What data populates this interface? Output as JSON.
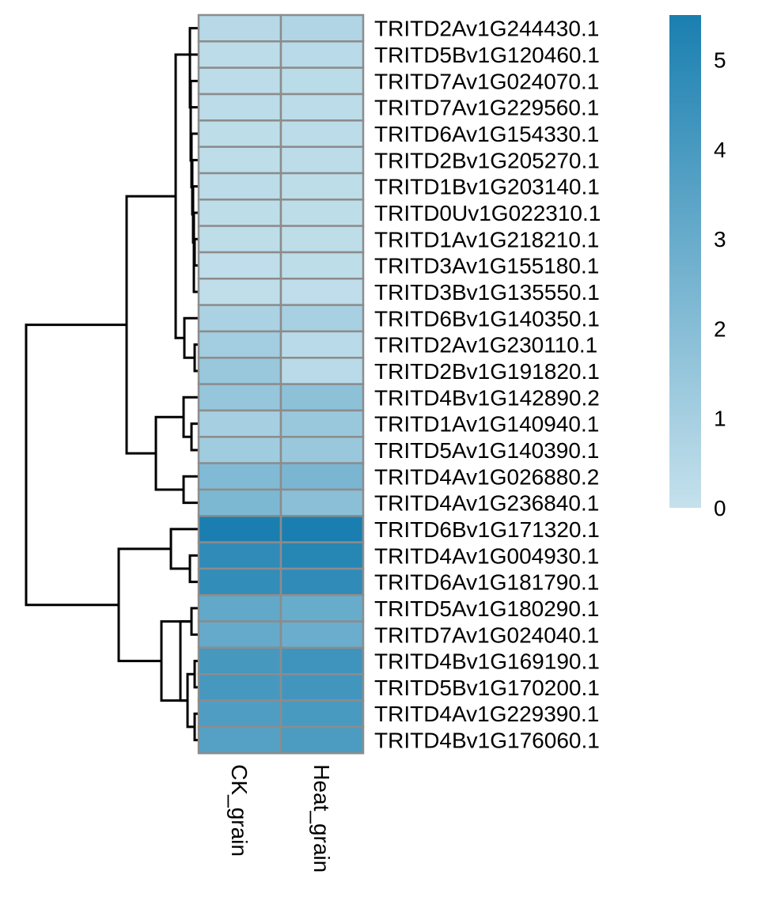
{
  "chart_data": {
    "type": "heatmap",
    "title": "",
    "columns": [
      "CK_grain",
      "Heat_grain"
    ],
    "rows": [
      {
        "gene": "TRITD2Av1G244430.1",
        "values": [
          0.45,
          0.65
        ]
      },
      {
        "gene": "TRITD5Bv1G120460.1",
        "values": [
          0.3,
          0.4
        ]
      },
      {
        "gene": "TRITD7Av1G024070.1",
        "values": [
          0.3,
          0.35
        ]
      },
      {
        "gene": "TRITD7Av1G229560.1",
        "values": [
          0.3,
          0.3
        ]
      },
      {
        "gene": "TRITD6Av1G154330.1",
        "values": [
          0.25,
          0.3
        ]
      },
      {
        "gene": "TRITD2Bv1G205270.1",
        "values": [
          0.25,
          0.3
        ]
      },
      {
        "gene": "TRITD1Bv1G203140.1",
        "values": [
          0.3,
          0.25
        ]
      },
      {
        "gene": "TRITD0Uv1G022310.1",
        "values": [
          0.25,
          0.25
        ]
      },
      {
        "gene": "TRITD1Av1G218210.1",
        "values": [
          0.25,
          0.25
        ]
      },
      {
        "gene": "TRITD3Av1G155180.1",
        "values": [
          0.2,
          0.25
        ]
      },
      {
        "gene": "TRITD3Bv1G135550.1",
        "values": [
          0.15,
          0.2
        ]
      },
      {
        "gene": "TRITD6Bv1G140350.1",
        "values": [
          0.85,
          0.95
        ]
      },
      {
        "gene": "TRITD2Av1G230110.1",
        "values": [
          1.1,
          0.4
        ]
      },
      {
        "gene": "TRITD2Bv1G191820.1",
        "values": [
          1.4,
          0.4
        ]
      },
      {
        "gene": "TRITD4Bv1G142890.2",
        "values": [
          1.5,
          1.8
        ]
      },
      {
        "gene": "TRITD1Av1G140940.1",
        "values": [
          1.0,
          1.4
        ]
      },
      {
        "gene": "TRITD5Av1G140390.1",
        "values": [
          1.2,
          1.4
        ]
      },
      {
        "gene": "TRITD4Av1G026880.2",
        "values": [
          2.2,
          2.4
        ]
      },
      {
        "gene": "TRITD4Av1G236840.1",
        "values": [
          2.3,
          1.9
        ]
      },
      {
        "gene": "TRITD6Bv1G171320.1",
        "values": [
          5.5,
          5.5
        ]
      },
      {
        "gene": "TRITD4Av1G004930.1",
        "values": [
          4.8,
          5.1
        ]
      },
      {
        "gene": "TRITD6Av1G181790.1",
        "values": [
          4.7,
          4.8
        ]
      },
      {
        "gene": "TRITD5Av1G180290.1",
        "values": [
          3.2,
          3.0
        ]
      },
      {
        "gene": "TRITD7Av1G024040.1",
        "values": [
          3.1,
          2.9
        ]
      },
      {
        "gene": "TRITD4Bv1G169190.1",
        "values": [
          4.1,
          4.3
        ]
      },
      {
        "gene": "TRITD5Bv1G170200.1",
        "values": [
          4.1,
          4.2
        ]
      },
      {
        "gene": "TRITD4Av1G229390.1",
        "values": [
          3.8,
          4.0
        ]
      },
      {
        "gene": "TRITD4Bv1G176060.1",
        "values": [
          3.6,
          3.9
        ]
      }
    ],
    "legend": {
      "min": 0,
      "max": 5.5,
      "ticks": [
        0,
        1,
        2,
        3,
        4,
        5
      ],
      "color_low": "#c5e1ec",
      "color_high": "#1a7fb0",
      "placement": "right"
    },
    "row_dendrogram": "left",
    "cell_border_color": "#8c8c8c"
  }
}
